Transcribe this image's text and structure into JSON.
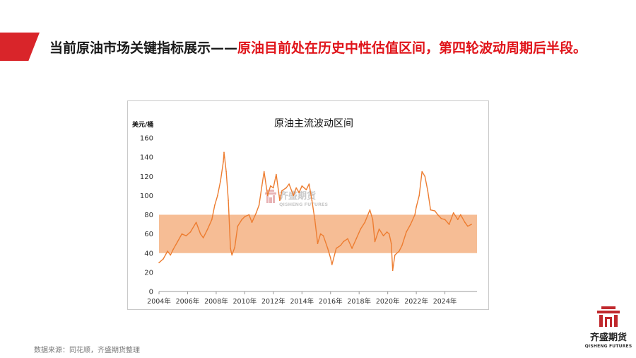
{
  "slide": {
    "title_plain": "当前原油市场关键指标展示——",
    "title_highlight": "原油目前处在历史中性估值区间，第四轮波动周期后半段。",
    "source": "数据来源：同花顺，齐盛期货整理",
    "accent_color": "#d9252a",
    "highlight_color": "#e0141a"
  },
  "brand": {
    "name": "齐盛期货",
    "name_en": "QISHENG FUTURES",
    "color": "#c0282d"
  },
  "chart_data": {
    "type": "line",
    "title": "原油主流波动区间",
    "ylabel": "美元/桶",
    "ylim": [
      0,
      160
    ],
    "yticks": [
      0,
      20,
      40,
      60,
      80,
      100,
      120,
      140,
      160
    ],
    "xlim": [
      2004.0,
      2025.85
    ],
    "xticks": [
      "2004年",
      "2006年",
      "2008年",
      "2010年",
      "2012年",
      "2014年",
      "2016年",
      "2018年",
      "2020年",
      "2022年",
      "2024年"
    ],
    "grid": false,
    "band": {
      "low": 40,
      "high": 80,
      "color": "#f4b183"
    },
    "line_color": "#ed7d31",
    "watermark": {
      "name": "齐盛期货",
      "name_en": "QISHENG FUTURES"
    },
    "series": [
      {
        "x": [
          2004.0,
          2004.3,
          2004.6,
          2004.8,
          2005.0,
          2005.3,
          2005.6,
          2005.9,
          2006.2,
          2006.6,
          2006.9,
          2007.1,
          2007.4,
          2007.7,
          2007.9,
          2008.1,
          2008.3,
          2008.5,
          2008.55,
          2008.7,
          2008.85,
          2009.0,
          2009.1,
          2009.3,
          2009.5,
          2009.8,
          2010.0,
          2010.3,
          2010.5,
          2010.8,
          2011.0,
          2011.2,
          2011.35,
          2011.6,
          2011.8,
          2012.0,
          2012.2,
          2012.45,
          2012.6,
          2012.9,
          2013.1,
          2013.4,
          2013.6,
          2013.8,
          2014.0,
          2014.3,
          2014.5,
          2014.7,
          2014.9,
          2015.1,
          2015.3,
          2015.5,
          2015.8,
          2016.0,
          2016.1,
          2016.4,
          2016.7,
          2016.9,
          2017.2,
          2017.5,
          2017.8,
          2018.1,
          2018.4,
          2018.75,
          2018.95,
          2019.1,
          2019.4,
          2019.7,
          2019.95,
          2020.1,
          2020.25,
          2020.35,
          2020.5,
          2020.8,
          2021.0,
          2021.3,
          2021.6,
          2021.9,
          2022.0,
          2022.2,
          2022.4,
          2022.6,
          2022.8,
          2023.0,
          2023.3,
          2023.5,
          2023.75,
          2024.0,
          2024.3,
          2024.6,
          2024.9,
          2025.1,
          2025.4,
          2025.6,
          2025.85
        ],
        "values": [
          30,
          34,
          42,
          38,
          44,
          52,
          60,
          58,
          62,
          72,
          60,
          56,
          65,
          75,
          90,
          100,
          115,
          135,
          145,
          125,
          95,
          45,
          38,
          46,
          68,
          75,
          78,
          80,
          72,
          82,
          90,
          110,
          125,
          100,
          110,
          108,
          122,
          95,
          105,
          108,
          112,
          100,
          108,
          103,
          110,
          106,
          112,
          95,
          75,
          50,
          60,
          58,
          45,
          35,
          28,
          45,
          48,
          52,
          55,
          45,
          55,
          65,
          72,
          85,
          75,
          52,
          65,
          58,
          62,
          60,
          50,
          22,
          38,
          42,
          48,
          62,
          70,
          80,
          88,
          100,
          125,
          120,
          105,
          85,
          84,
          80,
          76,
          75,
          70,
          82,
          75,
          80,
          72,
          68,
          70
        ]
      }
    ]
  }
}
